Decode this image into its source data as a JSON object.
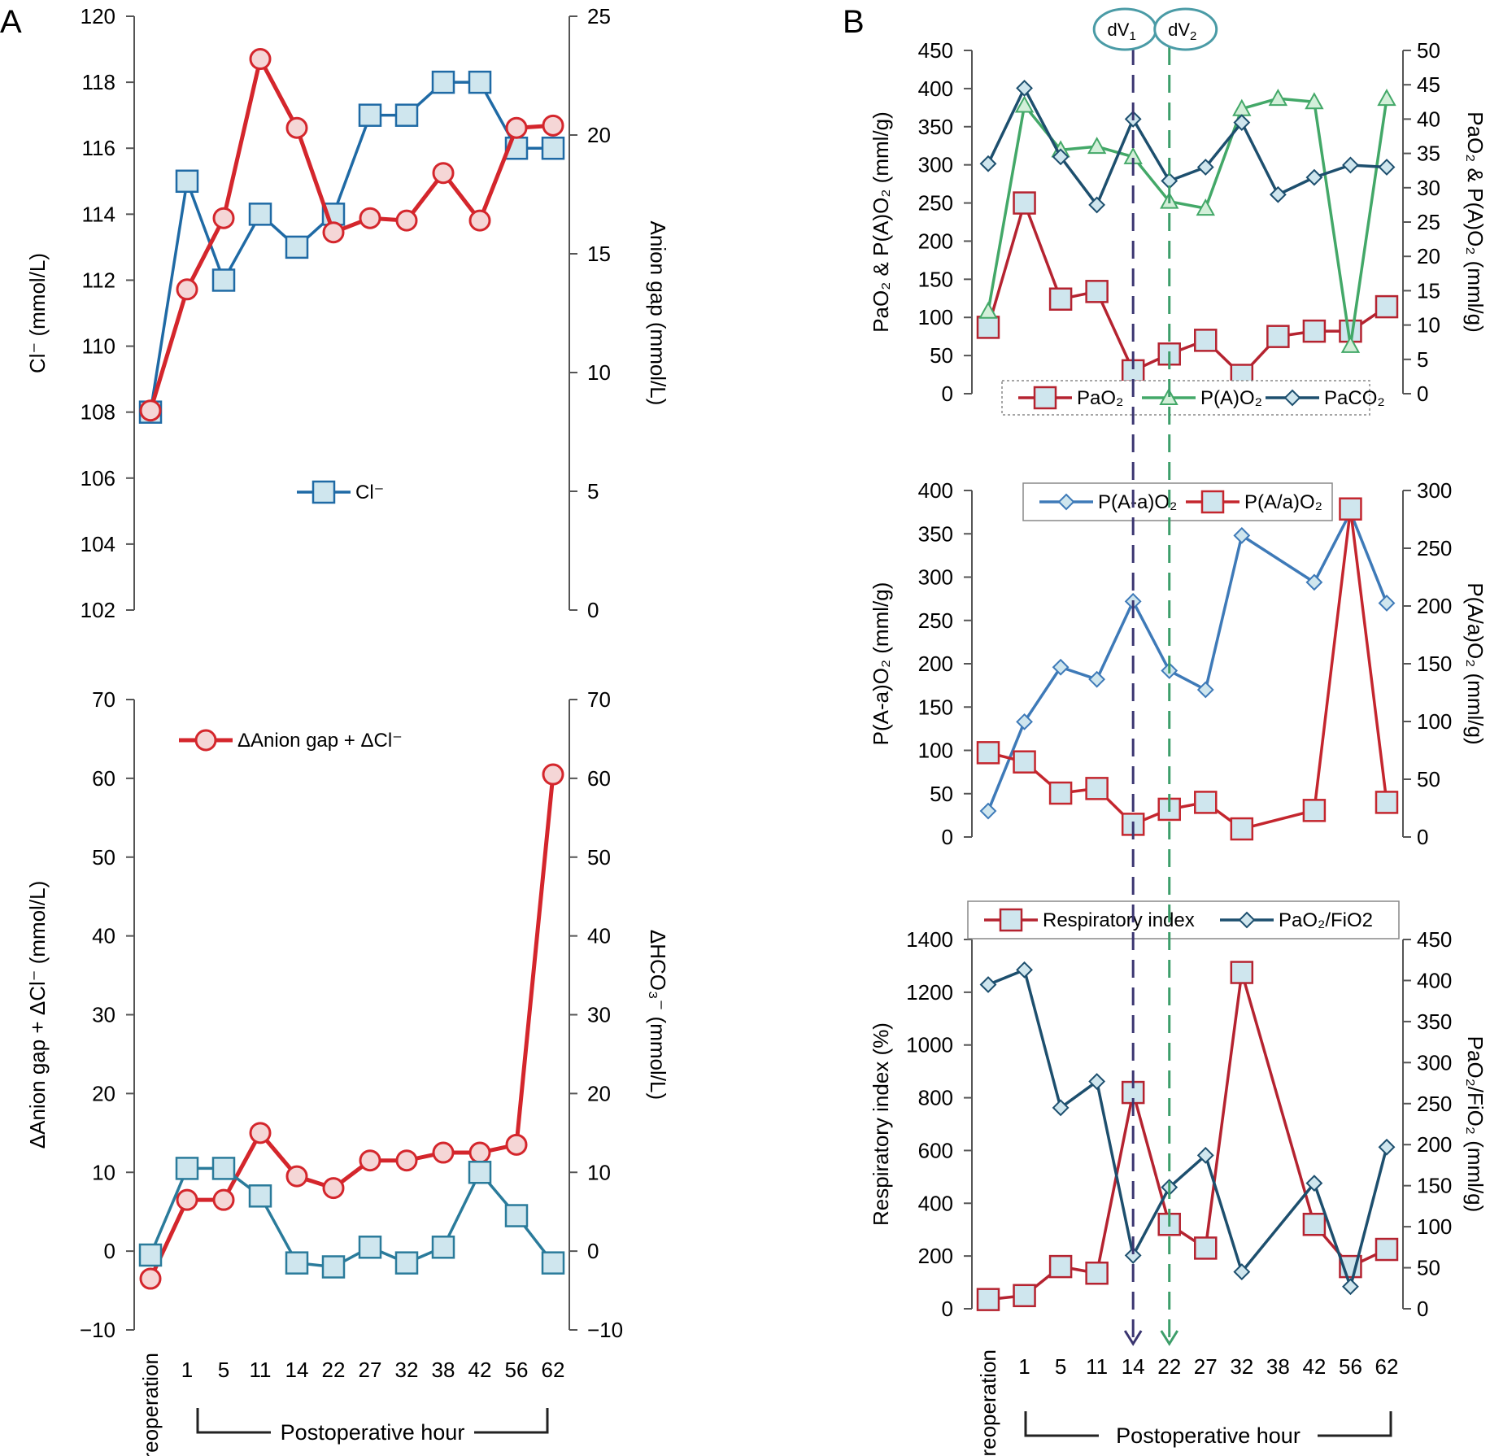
{
  "figure": {
    "panel_labels": [
      "A",
      "B"
    ],
    "x_axis": {
      "ticks": [
        "Preoperation",
        "1",
        "5",
        "11",
        "14",
        "22",
        "27",
        "32",
        "38",
        "42",
        "56",
        "62"
      ],
      "group_label": "Postoperative hour"
    },
    "events": [
      {
        "label": "dV",
        "sub": "1",
        "at": "14",
        "color": "#3a3570"
      },
      {
        "label": "dV",
        "sub": "2",
        "at": "22",
        "color": "#3d9e6a"
      }
    ]
  },
  "colors": {
    "red": "#d4262c",
    "blue": "#1f6aa5",
    "green": "#43a868",
    "navy": "#1d4f6e",
    "light_blue": "#5a94c6",
    "axis": "#555555",
    "marker_face": "#cfe6ee",
    "event_box": "#4a9ba6"
  },
  "chart_data": [
    {
      "id": "A1",
      "type": "line",
      "x": [
        "Preoperation",
        "1",
        "5",
        "11",
        "14",
        "22",
        "27",
        "32",
        "38",
        "42",
        "56",
        "62"
      ],
      "y_left": {
        "label": "Cl⁻ (mmol/L)",
        "ticks": [
          "120",
          "118",
          "116",
          "114",
          "112",
          "110",
          "108",
          "106",
          "104",
          "102"
        ],
        "min": 102,
        "max": 120
      },
      "y_right": {
        "label": "Anion gap (mmol/L)",
        "ticks": [
          "25",
          "20",
          "15",
          "10",
          "5",
          "0"
        ],
        "min": 0,
        "max": 25
      },
      "legend": [
        {
          "name": "Cl⁻",
          "series": 0
        }
      ],
      "series": [
        {
          "name": "Cl⁻",
          "axis": "left",
          "color": "#1f6aa5",
          "marker": "square",
          "values": [
            108,
            115,
            112,
            114,
            113,
            114,
            117,
            117,
            118,
            118,
            116,
            116
          ]
        },
        {
          "name": "",
          "axis": "right",
          "color": "#d4262c",
          "marker": "circle",
          "values": [
            8.4,
            13.5,
            16.5,
            23.2,
            20.3,
            15.9,
            16.5,
            16.4,
            18.4,
            16.4,
            20.3,
            20.4
          ]
        }
      ]
    },
    {
      "id": "A2",
      "type": "line",
      "x": [
        "Preoperation",
        "1",
        "5",
        "11",
        "14",
        "22",
        "27",
        "32",
        "38",
        "42",
        "56",
        "62"
      ],
      "y_left": {
        "label": "ΔAnion gap + ΔCl⁻ (mmol/L)",
        "ticks": [
          "70",
          "60",
          "50",
          "40",
          "30",
          "20",
          "10",
          "0",
          "−10"
        ],
        "min": -10,
        "max": 70
      },
      "y_right": {
        "label": "ΔHCO₃⁻ (mmol/L)",
        "ticks": [
          "70",
          "60",
          "50",
          "40",
          "30",
          "20",
          "10",
          "0",
          "−10"
        ],
        "min": -10,
        "max": 70
      },
      "legend": [
        {
          "name": "ΔAnion gap + ΔCl⁻",
          "series": 0
        }
      ],
      "series": [
        {
          "name": "ΔAnion gap + ΔCl⁻",
          "axis": "left",
          "color": "#d4262c",
          "marker": "circle",
          "values": [
            -3.5,
            6.5,
            6.5,
            15,
            9.5,
            8,
            11.5,
            11.5,
            12.5,
            12.5,
            13.5,
            60.5
          ]
        },
        {
          "name": "",
          "axis": "right",
          "color": "#2a7b9b",
          "marker": "square",
          "values": [
            -0.5,
            10.5,
            10.5,
            7,
            -1.5,
            -2,
            0.5,
            -1.5,
            0.5,
            10,
            4.5,
            -1.5
          ]
        }
      ]
    },
    {
      "id": "B1",
      "type": "line",
      "x": [
        "Preoperation",
        "1",
        "5",
        "11",
        "14",
        "22",
        "27",
        "32",
        "38",
        "42",
        "56",
        "62"
      ],
      "y_left": {
        "label": "PaO₂ & P(A)O₂ (mml/g)",
        "ticks": [
          "450",
          "400",
          "350",
          "300",
          "250",
          "200",
          "150",
          "100",
          "50",
          "0"
        ],
        "min": 0,
        "max": 450
      },
      "y_right": {
        "label": "PaO₂ & P(A)O₂ (mml/g)",
        "ticks": [
          "50",
          "45",
          "40",
          "35",
          "30",
          "25",
          "20",
          "15",
          "10",
          "5",
          "0"
        ],
        "min": 0,
        "max": 50
      },
      "legend": [
        {
          "name": "PaO₂",
          "series": 0
        },
        {
          "name": "P(A)O₂",
          "series": 1
        },
        {
          "name": "PaCO₂",
          "series": 2
        }
      ],
      "series": [
        {
          "name": "PaO₂",
          "axis": "left",
          "color": "#b52330",
          "marker": "square",
          "values": [
            87,
            250,
            124,
            134,
            30,
            52,
            70,
            24,
            75,
            82,
            82,
            114
          ]
        },
        {
          "name": "P(A)O₂",
          "axis": "right",
          "color": "#43a868",
          "marker": "triangle",
          "values": [
            12,
            42,
            35.5,
            36,
            34.5,
            28,
            27,
            41.5,
            43,
            42.5,
            7,
            43
          ]
        },
        {
          "name": "PaCO₂",
          "axis": "right",
          "color": "#1d4f6e",
          "marker": "diamond",
          "values": [
            33.5,
            44.5,
            34.5,
            27.5,
            40,
            31,
            33,
            39.5,
            29,
            31.5,
            33.3,
            33
          ]
        }
      ]
    },
    {
      "id": "B2",
      "type": "line",
      "x": [
        "Preoperation",
        "1",
        "5",
        "11",
        "14",
        "22",
        "27",
        "32",
        "38",
        "42",
        "56",
        "62"
      ],
      "y_left": {
        "label": "P(A-a)O₂ (mml/g)",
        "ticks": [
          "400",
          "350",
          "300",
          "250",
          "200",
          "150",
          "100",
          "50",
          "0"
        ],
        "min": 0,
        "max": 400
      },
      "y_right": {
        "label": "P(A/a)O₂ (mml/g)",
        "ticks": [
          "300",
          "250",
          "200",
          "150",
          "100",
          "50",
          "0"
        ],
        "min": 0,
        "max": 300
      },
      "legend": [
        {
          "name": "P(A-a)O₂",
          "series": 0
        },
        {
          "name": "P(A/a)O₂",
          "series": 1
        }
      ],
      "series": [
        {
          "name": "P(A-a)O₂",
          "axis": "left",
          "color": "#3e7ab8",
          "marker": "diamond",
          "values": [
            30,
            133,
            196,
            182,
            272,
            192,
            170,
            348,
            null,
            294,
            375,
            270
          ]
        },
        {
          "name": "P(A/a)O₂",
          "axis": "right",
          "color": "#c4262e",
          "marker": "square",
          "values": [
            73,
            65,
            38,
            42,
            11,
            24,
            30,
            7,
            null,
            23,
            284,
            30
          ]
        }
      ]
    },
    {
      "id": "B3",
      "type": "line",
      "x": [
        "Preoperation",
        "1",
        "5",
        "11",
        "14",
        "22",
        "27",
        "32",
        "38",
        "42",
        "56",
        "62"
      ],
      "y_left": {
        "label": "Respiratory index (%)",
        "ticks": [
          "1400",
          "1200",
          "1000",
          "800",
          "600",
          "400",
          "200",
          "0"
        ],
        "min": 0,
        "max": 1400
      },
      "y_right": {
        "label": "PaO₂/FiO₂ (mml/g)",
        "ticks": [
          "450",
          "400",
          "350",
          "300",
          "250",
          "200",
          "150",
          "100",
          "50",
          "0"
        ],
        "min": 0,
        "max": 450
      },
      "legend": [
        {
          "name": "Respiratory index",
          "series": 0
        },
        {
          "name": "PaO₂/FiO2",
          "series": 1
        }
      ],
      "series": [
        {
          "name": "Respiratory index",
          "axis": "left",
          "color": "#b52330",
          "marker": "square",
          "values": [
            35,
            50,
            160,
            135,
            820,
            320,
            230,
            1275,
            null,
            320,
            160,
            225
          ]
        },
        {
          "name": "PaO₂/FiO2",
          "axis": "right",
          "color": "#1d4f6e",
          "marker": "diamond",
          "values": [
            395,
            413,
            245,
            277,
            65,
            148,
            187,
            45,
            null,
            153,
            27,
            197
          ]
        }
      ]
    }
  ]
}
